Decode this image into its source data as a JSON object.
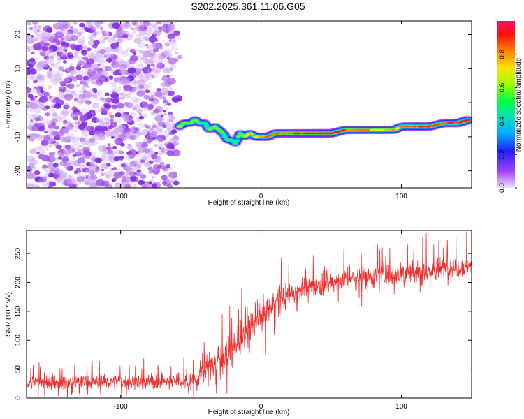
{
  "title": "S202.2025.361.11.06.G05",
  "chart_data": [
    {
      "type": "heatmap",
      "xlabel": "Height of straight line (km)",
      "ylabel": "Frequency (Hz)",
      "xlim": [
        -167,
        150
      ],
      "ylim": [
        -25,
        24
      ],
      "x_ticks": [
        -100,
        0,
        100
      ],
      "y_ticks": [
        20,
        10,
        0,
        -10,
        -20
      ],
      "colorbar": {
        "label": "Normalized spectral amplitude",
        "range": [
          0.0,
          1.0
        ],
        "ticks": [
          0.0,
          0.2,
          0.4,
          0.6,
          0.8
        ],
        "colors": [
          "#e8d4f8",
          "#8a2be2",
          "#2020ff",
          "#00d0ff",
          "#00ff80",
          "#80ff00",
          "#ffff00",
          "#ff8000",
          "#ff1010",
          "#ff1060"
        ]
      },
      "noise_region": {
        "x_from": -167,
        "x_to": -60,
        "peak_amplitude": 0.2
      },
      "signal_track": {
        "x": [
          -58,
          -55,
          -50,
          -47,
          -44,
          -40,
          -37,
          -33,
          -30,
          -27,
          -24,
          -21,
          -18,
          -15,
          -12,
          -8,
          -4,
          0,
          5,
          10,
          20,
          30,
          40,
          50,
          60,
          70,
          80,
          90,
          95,
          100,
          110,
          120,
          130,
          140,
          148
        ],
        "frequency": [
          -7,
          -6,
          -6,
          -5,
          -6,
          -6,
          -8,
          -7,
          -8,
          -9,
          -11,
          -11,
          -12,
          -9,
          -10,
          -9,
          -10,
          -10,
          -10,
          -9,
          -9,
          -9,
          -9,
          -9,
          -8,
          -8,
          -8,
          -8,
          -8,
          -7,
          -7,
          -7,
          -6,
          -6,
          -5
        ],
        "amplitude": [
          0.6,
          0.55,
          0.5,
          0.5,
          0.45,
          0.4,
          0.45,
          0.55,
          0.5,
          0.45,
          0.4,
          0.35,
          0.4,
          0.55,
          0.6,
          0.6,
          0.65,
          0.7,
          0.7,
          0.75,
          0.75,
          0.8,
          0.85,
          0.85,
          0.75,
          0.7,
          0.65,
          0.6,
          0.65,
          0.7,
          0.8,
          0.8,
          0.75,
          0.8,
          0.9
        ]
      }
    },
    {
      "type": "line",
      "xlabel": "Height of straight line (km)",
      "ylabel": "SNR (10 * v/v)",
      "xlim": [
        -167,
        150
      ],
      "ylim": [
        0,
        290
      ],
      "x_ticks": [
        -100,
        0,
        100
      ],
      "y_ticks": [
        0,
        50,
        100,
        150,
        200,
        250
      ],
      "color": "#ee3030",
      "series": [
        {
          "name": "SNR",
          "x": [
            -167,
            -140,
            -100,
            -70,
            -55,
            -45,
            -40,
            -30,
            -20,
            -10,
            0,
            10,
            20,
            30,
            40,
            60,
            80,
            100,
            120,
            150
          ],
          "mean": [
            27,
            27,
            28,
            28,
            29,
            32,
            50,
            70,
            85,
            115,
            140,
            165,
            180,
            190,
            195,
            205,
            212,
            215,
            220,
            230
          ],
          "spread": [
            18,
            20,
            20,
            20,
            22,
            25,
            35,
            45,
            50,
            50,
            45,
            40,
            35,
            30,
            30,
            30,
            32,
            35,
            35,
            30
          ]
        }
      ]
    }
  ]
}
